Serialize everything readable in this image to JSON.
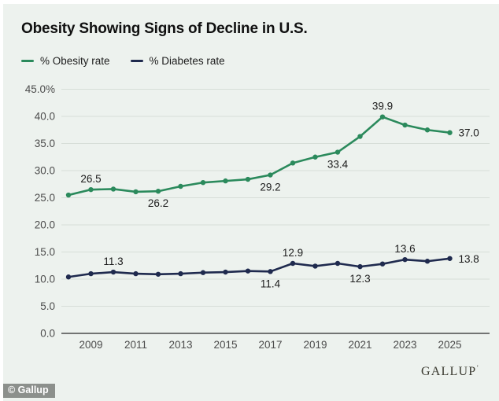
{
  "title": "Obesity Showing Signs of Decline in U.S.",
  "chart_data": {
    "type": "line",
    "x": [
      2008,
      2009,
      2010,
      2011,
      2012,
      2013,
      2014,
      2015,
      2016,
      2017,
      2018,
      2019,
      2020,
      2021,
      2022,
      2023,
      2024,
      2025
    ],
    "series": [
      {
        "name": "% Obesity rate",
        "color": "#2b8a5c",
        "values": [
          25.5,
          26.5,
          26.6,
          26.1,
          26.2,
          27.1,
          27.8,
          28.1,
          28.4,
          29.2,
          31.4,
          32.5,
          33.4,
          36.3,
          39.9,
          38.4,
          37.5,
          37.0
        ],
        "point_labels": [
          {
            "year": 2009,
            "text": "26.5",
            "position": "above"
          },
          {
            "year": 2012,
            "text": "26.2",
            "position": "below"
          },
          {
            "year": 2017,
            "text": "29.2",
            "position": "below"
          },
          {
            "year": 2020,
            "text": "33.4",
            "position": "below"
          },
          {
            "year": 2022,
            "text": "39.9",
            "position": "above"
          },
          {
            "year": 2025,
            "text": "37.0",
            "position": "right"
          }
        ]
      },
      {
        "name": "% Diabetes rate",
        "color": "#1f2a4e",
        "values": [
          10.4,
          11.0,
          11.3,
          11.0,
          10.9,
          11.0,
          11.2,
          11.3,
          11.5,
          11.4,
          12.9,
          12.4,
          12.9,
          12.3,
          12.8,
          13.6,
          13.3,
          13.8
        ],
        "point_labels": [
          {
            "year": 2010,
            "text": "11.3",
            "position": "above"
          },
          {
            "year": 2017,
            "text": "11.4",
            "position": "below"
          },
          {
            "year": 2018,
            "text": "12.9",
            "position": "above"
          },
          {
            "year": 2021,
            "text": "12.3",
            "position": "below"
          },
          {
            "year": 2023,
            "text": "13.6",
            "position": "above"
          },
          {
            "year": 2025,
            "text": "13.8",
            "position": "right"
          }
        ]
      }
    ],
    "ylim": [
      0,
      45
    ],
    "ytick_step": 5,
    "ytick_labels": [
      "0.0",
      "5.0",
      "10.0",
      "15.0",
      "20.0",
      "25.0",
      "30.0",
      "35.0",
      "40.0",
      "45.0%"
    ],
    "xtick_years": [
      2009,
      2011,
      2013,
      2015,
      2017,
      2019,
      2021,
      2023,
      2025
    ],
    "grid": true,
    "legend_position": "top-left"
  },
  "colors": {
    "background": "#edf2ee",
    "grid": "#d7ded8",
    "axis": "#4a4a4a",
    "tick_text": "#4c4c4c",
    "label_text": "#1b1b1b"
  },
  "footer": {
    "wordmark": "GALLUP",
    "trademark": "’",
    "watermark": "© Gallup"
  }
}
